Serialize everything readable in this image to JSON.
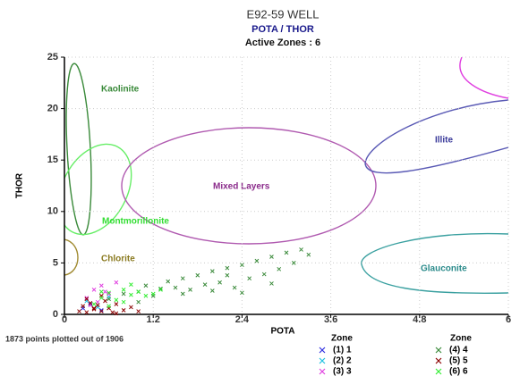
{
  "chart_data": {
    "type": "scatter",
    "title": "E92-59 WELL",
    "subtitle": "POTA / THOR",
    "active_zones": "Active Zones : 6",
    "x_label": "POTA",
    "y_label": "THOR",
    "footnote": "1873 points plotted out of 1906",
    "legend_title": "Zone",
    "xlim": [
      0,
      6
    ],
    "ylim": [
      0,
      25
    ],
    "xticks": [
      0,
      1.2,
      2.4,
      3.6,
      4.8,
      6
    ],
    "yticks": [
      0,
      5,
      10,
      15,
      20,
      25
    ],
    "grid": true,
    "regions": [
      "Kaolinite",
      "Mixed Layers",
      "Illite",
      "Montmorillonite",
      "Chlorite",
      "Glauconite"
    ],
    "series": [
      {
        "name": "(1) 1",
        "color": "#3030e0",
        "x": [
          0.25,
          0.35,
          0.5
        ],
        "y": [
          0.6,
          1.0,
          0.4
        ]
      },
      {
        "name": "(2) 2",
        "color": "#20c0e0",
        "x": [
          0.3,
          0.6,
          0.45
        ],
        "y": [
          1.3,
          1.7,
          0.7
        ]
      },
      {
        "name": "(3) 3",
        "color": "#e040e0",
        "x": [
          0.3,
          0.4,
          0.5,
          0.6,
          0.7,
          0.45,
          0.55,
          0.35
        ],
        "y": [
          1.6,
          2.4,
          2.8,
          2.0,
          3.1,
          1.2,
          2.2,
          0.9
        ]
      },
      {
        "name": "(4) 4",
        "color": "#3a8a3a",
        "x": [
          0.6,
          0.8,
          1.0,
          1.1,
          1.3,
          1.4,
          1.5,
          1.6,
          1.7,
          1.8,
          1.9,
          2.0,
          2.1,
          2.2,
          2.3,
          2.4,
          2.5,
          2.6,
          2.7,
          2.8,
          2.9,
          3.0,
          3.1,
          3.2,
          3.3,
          1.2,
          1.6,
          2.0,
          2.4,
          2.8,
          1.0,
          2.2
        ],
        "y": [
          1.5,
          2.0,
          2.2,
          2.8,
          2.5,
          3.2,
          2.6,
          3.5,
          2.4,
          3.8,
          2.9,
          4.2,
          3.1,
          4.5,
          2.6,
          4.8,
          3.5,
          5.2,
          3.9,
          5.6,
          4.4,
          6.0,
          5.0,
          6.3,
          5.8,
          1.8,
          2.0,
          2.3,
          2.1,
          3.0,
          1.2,
          3.8
        ]
      },
      {
        "name": "(5) 5",
        "color": "#8b0000",
        "x": [
          0.2,
          0.25,
          0.3,
          0.35,
          0.4,
          0.45,
          0.5,
          0.55,
          0.6,
          0.65,
          0.7,
          0.8,
          0.9,
          1.0,
          0.3,
          0.5,
          0.7,
          0.4
        ],
        "y": [
          0.3,
          0.8,
          0.2,
          1.1,
          0.5,
          0.9,
          0.3,
          1.3,
          0.6,
          0.2,
          1.0,
          0.4,
          0.7,
          0.3,
          1.5,
          1.8,
          0.1,
          0.6
        ]
      },
      {
        "name": "(6) 6",
        "color": "#33ee33",
        "x": [
          0.4,
          0.5,
          0.6,
          0.7,
          0.8,
          0.9,
          1.0,
          1.1,
          0.6,
          0.8,
          1.2,
          1.3,
          0.5,
          0.9
        ],
        "y": [
          1.0,
          1.6,
          2.1,
          1.4,
          2.4,
          1.9,
          2.2,
          1.8,
          0.8,
          1.2,
          2.0,
          2.4,
          2.2,
          2.9
        ]
      }
    ]
  }
}
